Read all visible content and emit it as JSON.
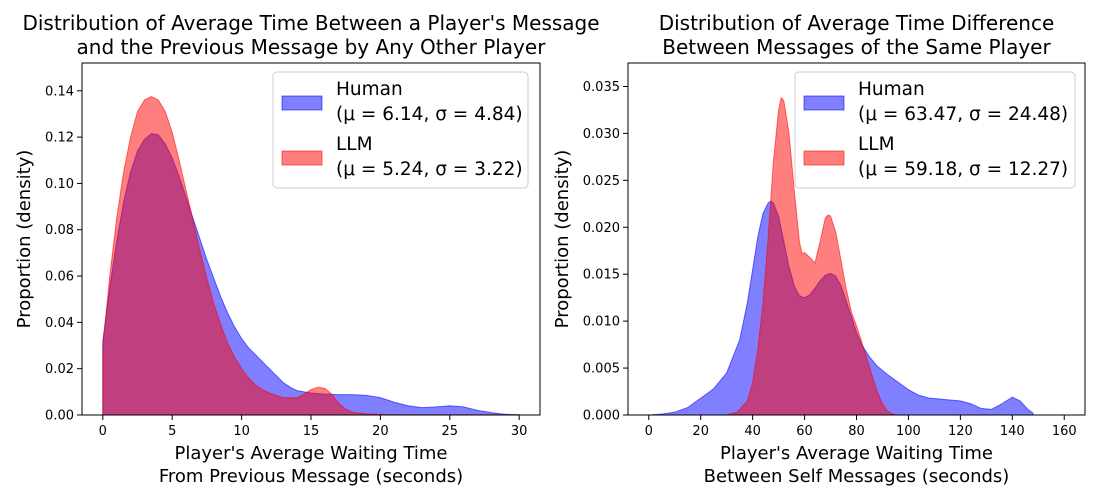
{
  "chart_data": [
    {
      "type": "area",
      "title": [
        "Distribution of Average Time Between a Player's Message",
        "and the Previous Message by Any Other Player"
      ],
      "xlabel": [
        "Player's Average Waiting Time",
        "From Previous Message (seconds)"
      ],
      "ylabel": "Proportion (density)",
      "xlim": [
        -1.5,
        31.5
      ],
      "ylim": [
        0,
        0.152
      ],
      "xticks": [
        0,
        5,
        10,
        15,
        20,
        25,
        30
      ],
      "yticks": [
        0.0,
        0.02,
        0.04,
        0.06,
        0.08,
        0.1,
        0.12,
        0.14
      ],
      "ytick_decimals": 2,
      "legend_position": "upper right",
      "series": [
        {
          "name": "Human",
          "stats": [
            "(μ = 6.14, σ = 4.84)"
          ],
          "color": "#0000ff",
          "points": [
            [
              0,
              0.032
            ],
            [
              0.5,
              0.055
            ],
            [
              1,
              0.075
            ],
            [
              1.5,
              0.092
            ],
            [
              2,
              0.105
            ],
            [
              2.5,
              0.114
            ],
            [
              3,
              0.119
            ],
            [
              3.5,
              0.1215
            ],
            [
              4,
              0.121
            ],
            [
              4.5,
              0.117
            ],
            [
              5,
              0.111
            ],
            [
              5.5,
              0.103
            ],
            [
              6,
              0.094
            ],
            [
              6.5,
              0.085
            ],
            [
              7,
              0.076
            ],
            [
              7.5,
              0.067
            ],
            [
              8,
              0.059
            ],
            [
              8.5,
              0.051
            ],
            [
              9,
              0.044
            ],
            [
              9.5,
              0.038
            ],
            [
              10,
              0.033
            ],
            [
              10.5,
              0.029
            ],
            [
              11,
              0.026
            ],
            [
              11.5,
              0.023
            ],
            [
              12,
              0.02
            ],
            [
              12.5,
              0.017
            ],
            [
              13,
              0.014
            ],
            [
              13.5,
              0.012
            ],
            [
              14,
              0.0105
            ],
            [
              15,
              0.0095
            ],
            [
              16,
              0.009
            ],
            [
              17,
              0.0088
            ],
            [
              18,
              0.0088
            ],
            [
              19,
              0.0085
            ],
            [
              20,
              0.0075
            ],
            [
              21,
              0.0055
            ],
            [
              22,
              0.004
            ],
            [
              23,
              0.0032
            ],
            [
              24,
              0.0035
            ],
            [
              25,
              0.004
            ],
            [
              26,
              0.0035
            ],
            [
              27,
              0.002
            ],
            [
              28,
              0.001
            ],
            [
              29,
              0.0003
            ],
            [
              30,
              0.0001
            ]
          ]
        },
        {
          "name": "LLM",
          "stats": [
            "(μ = 5.24, σ = 3.22)"
          ],
          "color": "#ff0000",
          "points": [
            [
              0,
              0.03
            ],
            [
              0.5,
              0.06
            ],
            [
              1,
              0.085
            ],
            [
              1.5,
              0.105
            ],
            [
              2,
              0.12
            ],
            [
              2.5,
              0.131
            ],
            [
              3,
              0.136
            ],
            [
              3.5,
              0.1375
            ],
            [
              4,
              0.136
            ],
            [
              4.5,
              0.131
            ],
            [
              5,
              0.122
            ],
            [
              5.5,
              0.11
            ],
            [
              6,
              0.097
            ],
            [
              6.5,
              0.084
            ],
            [
              7,
              0.071
            ],
            [
              7.5,
              0.059
            ],
            [
              8,
              0.048
            ],
            [
              8.5,
              0.039
            ],
            [
              9,
              0.031
            ],
            [
              9.5,
              0.025
            ],
            [
              10,
              0.02
            ],
            [
              10.5,
              0.016
            ],
            [
              11,
              0.013
            ],
            [
              11.5,
              0.011
            ],
            [
              12,
              0.0095
            ],
            [
              13,
              0.0075
            ],
            [
              14,
              0.0075
            ],
            [
              14.5,
              0.009
            ],
            [
              15,
              0.011
            ],
            [
              15.5,
              0.012
            ],
            [
              16,
              0.0115
            ],
            [
              16.5,
              0.009
            ],
            [
              17,
              0.005
            ],
            [
              17.5,
              0.0025
            ],
            [
              18,
              0.0012
            ],
            [
              19,
              0.0005
            ],
            [
              20,
              0.0002
            ],
            [
              22,
              0.0001
            ],
            [
              25,
              0.0001
            ],
            [
              28,
              0.0001
            ],
            [
              30,
              0.0001
            ]
          ]
        }
      ]
    },
    {
      "type": "area",
      "title": [
        "Distribution of Average Time Difference",
        "Between Messages of the Same Player"
      ],
      "xlabel": [
        "Player's Average Waiting Time",
        "Between Self Messages (seconds)"
      ],
      "ylabel": "Proportion (density)",
      "xlim": [
        -8,
        168
      ],
      "ylim": [
        0,
        0.0375
      ],
      "xticks": [
        0,
        20,
        40,
        60,
        80,
        100,
        120,
        140,
        160
      ],
      "yticks": [
        0.0,
        0.005,
        0.01,
        0.015,
        0.02,
        0.025,
        0.03,
        0.035
      ],
      "ytick_decimals": 3,
      "legend_position": "upper right",
      "series": [
        {
          "name": "Human",
          "stats": [
            "(μ = 63.47, σ = 24.48)"
          ],
          "color": "#0000ff",
          "points": [
            [
              0,
              0.0
            ],
            [
              5,
              0.0001
            ],
            [
              10,
              0.0003
            ],
            [
              15,
              0.0008
            ],
            [
              20,
              0.0018
            ],
            [
              25,
              0.0028
            ],
            [
              30,
              0.0045
            ],
            [
              35,
              0.008
            ],
            [
              38,
              0.012
            ],
            [
              40,
              0.0155
            ],
            [
              42,
              0.019
            ],
            [
              44,
              0.0215
            ],
            [
              46,
              0.0226
            ],
            [
              47,
              0.0228
            ],
            [
              48,
              0.0226
            ],
            [
              50,
              0.0212
            ],
            [
              52,
              0.0185
            ],
            [
              54,
              0.0158
            ],
            [
              56,
              0.0138
            ],
            [
              58,
              0.0127
            ],
            [
              60,
              0.0125
            ],
            [
              62,
              0.0128
            ],
            [
              64,
              0.0135
            ],
            [
              66,
              0.0143
            ],
            [
              68,
              0.0149
            ],
            [
              70,
              0.0151
            ],
            [
              72,
              0.0148
            ],
            [
              74,
              0.0138
            ],
            [
              76,
              0.0122
            ],
            [
              78,
              0.0105
            ],
            [
              80,
              0.0088
            ],
            [
              82,
              0.0075
            ],
            [
              85,
              0.0062
            ],
            [
              88,
              0.0052
            ],
            [
              92,
              0.0043
            ],
            [
              96,
              0.0035
            ],
            [
              100,
              0.0027
            ],
            [
              104,
              0.0021
            ],
            [
              108,
              0.0018
            ],
            [
              112,
              0.0017
            ],
            [
              116,
              0.0016
            ],
            [
              120,
              0.0015
            ],
            [
              124,
              0.0012
            ],
            [
              128,
              0.0007
            ],
            [
              132,
              0.0006
            ],
            [
              136,
              0.0012
            ],
            [
              140,
              0.0019
            ],
            [
              143,
              0.0015
            ],
            [
              146,
              0.0006
            ],
            [
              148,
              0.0002
            ]
          ]
        },
        {
          "name": "LLM",
          "stats": [
            "(μ = 59.18, σ = 12.27)"
          ],
          "color": "#ff0000",
          "points": [
            [
              0,
              0.0
            ],
            [
              30,
              0.0
            ],
            [
              34,
              0.0003
            ],
            [
              38,
              0.0015
            ],
            [
              40,
              0.0035
            ],
            [
              42,
              0.007
            ],
            [
              44,
              0.012
            ],
            [
              46,
              0.019
            ],
            [
              48,
              0.027
            ],
            [
              50,
              0.0325
            ],
            [
              51,
              0.0338
            ],
            [
              52,
              0.0335
            ],
            [
              54,
              0.03
            ],
            [
              56,
              0.024
            ],
            [
              58,
              0.0185
            ],
            [
              59,
              0.0172
            ],
            [
              60,
              0.0173
            ],
            [
              62,
              0.0168
            ],
            [
              64,
              0.0162
            ],
            [
              66,
              0.0185
            ],
            [
              68,
              0.021
            ],
            [
              69,
              0.0213
            ],
            [
              70,
              0.0212
            ],
            [
              72,
              0.0195
            ],
            [
              74,
              0.0165
            ],
            [
              76,
              0.0135
            ],
            [
              78,
              0.011
            ],
            [
              80,
              0.0095
            ],
            [
              82,
              0.0078
            ],
            [
              84,
              0.006
            ],
            [
              86,
              0.0042
            ],
            [
              88,
              0.0025
            ],
            [
              90,
              0.0012
            ],
            [
              92,
              0.0004
            ],
            [
              94,
              0.0001
            ],
            [
              96,
              0.0
            ]
          ]
        }
      ]
    }
  ]
}
